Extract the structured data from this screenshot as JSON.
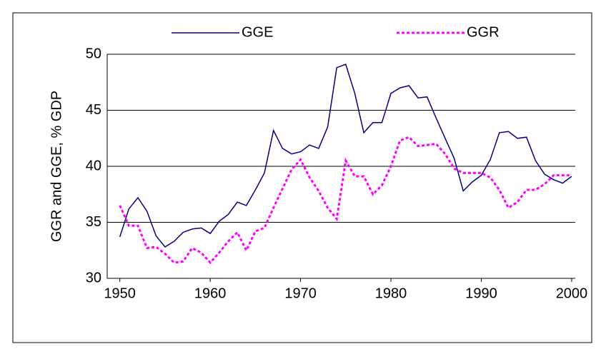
{
  "chart_data": {
    "type": "line",
    "y_label": "GGR and GGE, % GDP",
    "x": [
      1950,
      1951,
      1952,
      1953,
      1954,
      1955,
      1956,
      1957,
      1958,
      1959,
      1960,
      1961,
      1962,
      1963,
      1964,
      1965,
      1966,
      1967,
      1968,
      1969,
      1970,
      1971,
      1972,
      1973,
      1974,
      1975,
      1976,
      1977,
      1978,
      1979,
      1980,
      1981,
      1982,
      1983,
      1984,
      1985,
      1986,
      1987,
      1988,
      1989,
      1990,
      1991,
      1992,
      1993,
      1994,
      1995,
      1996,
      1997,
      1998,
      1999,
      2000
    ],
    "series": [
      {
        "name": "GGE",
        "color": "#000080",
        "dashed": false,
        "values": [
          33.7,
          36.2,
          37.2,
          36.0,
          33.8,
          32.8,
          33.3,
          34.1,
          34.4,
          34.5,
          34.0,
          35.1,
          35.7,
          36.8,
          36.5,
          37.9,
          39.4,
          43.2,
          41.6,
          41.1,
          41.3,
          41.9,
          41.6,
          43.5,
          48.8,
          49.1,
          46.5,
          43.0,
          43.9,
          43.9,
          46.5,
          47.0,
          47.2,
          46.1,
          46.2,
          44.3,
          42.5,
          40.7,
          37.8,
          38.6,
          39.2,
          40.6,
          43.0,
          43.1,
          42.5,
          42.6,
          40.5,
          39.3,
          38.8,
          38.5,
          39.1
        ]
      },
      {
        "name": "GGR",
        "color": "#ff00ff",
        "dashed": true,
        "values": [
          36.5,
          34.7,
          34.7,
          32.7,
          32.8,
          32.2,
          31.4,
          31.5,
          32.7,
          32.3,
          31.4,
          32.3,
          33.3,
          34.1,
          32.5,
          34.2,
          34.5,
          36.3,
          38.0,
          39.7,
          40.6,
          39.0,
          37.8,
          36.3,
          35.3,
          40.5,
          39.1,
          39.1,
          37.5,
          38.3,
          40.0,
          42.3,
          42.6,
          41.8,
          41.9,
          42.0,
          41.1,
          39.8,
          39.4,
          39.4,
          39.4,
          39.0,
          37.9,
          36.3,
          36.8,
          37.9,
          37.9,
          38.4,
          39.2,
          39.2,
          39.2
        ]
      }
    ],
    "xlim": [
      1948.6,
      2000.4
    ],
    "xticks": [
      1950,
      1960,
      1970,
      1980,
      1990,
      2000
    ],
    "ylim": [
      30,
      50
    ],
    "yticks": [
      30,
      35,
      40,
      45,
      50
    ],
    "grid": true
  }
}
